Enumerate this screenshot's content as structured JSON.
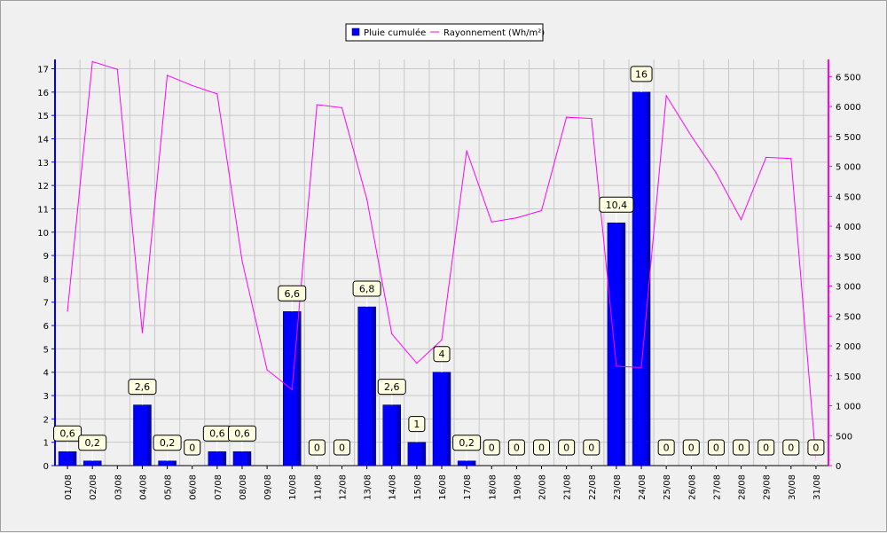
{
  "chart_data": {
    "type": "bar",
    "categories": [
      "01/08",
      "02/08",
      "03/08",
      "04/08",
      "05/08",
      "06/08",
      "07/08",
      "08/08",
      "09/08",
      "10/08",
      "11/08",
      "12/08",
      "13/08",
      "14/08",
      "15/08",
      "16/08",
      "17/08",
      "18/08",
      "19/08",
      "20/08",
      "21/08",
      "22/08",
      "23/08",
      "24/08",
      "25/08",
      "26/08",
      "27/08",
      "28/08",
      "29/08",
      "30/08",
      "31/08"
    ],
    "series": [
      {
        "name": "Pluie cumulée",
        "type": "bar",
        "axis": "left",
        "color": "#0000ff",
        "values": [
          0.6,
          0.2,
          null,
          2.6,
          0.2,
          0,
          0.6,
          0.6,
          null,
          6.6,
          0,
          0,
          6.8,
          2.6,
          1,
          4,
          0.2,
          0,
          0,
          0,
          0,
          0,
          10.4,
          16,
          0,
          0,
          0,
          0,
          0,
          0,
          0
        ],
        "labels": [
          "0,6",
          "0,2",
          "",
          "2,6",
          "0,2",
          "0",
          "0,6",
          "0,6",
          "",
          "6,6",
          "0",
          "0",
          "6,8",
          "2,6",
          "1",
          "4",
          "0,2",
          "0",
          "0",
          "0",
          "0",
          "0",
          "10,4",
          "16",
          "0",
          "0",
          "0",
          "0",
          "0",
          "0",
          "0"
        ]
      },
      {
        "name": "Rayonnement (Wh/m²)",
        "type": "line",
        "axis": "right",
        "color": "#ff00ff",
        "values": [
          2580,
          6750,
          6620,
          2220,
          6520,
          6350,
          6210,
          3420,
          1600,
          1270,
          6030,
          5980,
          4450,
          2200,
          1710,
          2100,
          5260,
          4070,
          4140,
          4260,
          5820,
          5800,
          1660,
          1640,
          6180,
          5510,
          4890,
          4110,
          5150,
          5130,
          80
        ]
      }
    ],
    "y_left": {
      "range": [
        0,
        17.4
      ],
      "ticks": [
        "0",
        "1",
        "2",
        "3",
        "4",
        "5",
        "6",
        "7",
        "8",
        "9",
        "10",
        "11",
        "12",
        "13",
        "14",
        "15",
        "16",
        "17"
      ]
    },
    "y_right": {
      "range": [
        0,
        6786
      ],
      "ticks": [
        "0",
        "500",
        "1 000",
        "1 500",
        "2 000",
        "2 500",
        "3 000",
        "3 500",
        "4 000",
        "4 500",
        "5 000",
        "5 500",
        "6 000",
        "6 500"
      ]
    },
    "grid": true,
    "legend_position": "top-center"
  }
}
